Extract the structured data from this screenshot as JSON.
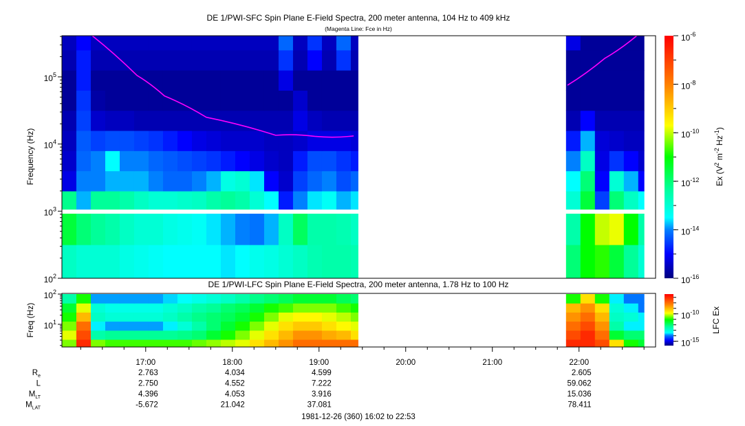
{
  "chart_data": [
    {
      "type": "heatmap",
      "title": "DE 1/PWI-SFC  Spin Plane E-Field Spectra, 200 meter antenna, 104 Hz to 409 kHz",
      "subtitle": "(Magenta Line: Fce in Hz)",
      "ylabel": "Frequency (Hz)",
      "yscale": "log",
      "ylim": [
        100,
        409000
      ],
      "yticks": [
        "10^2",
        "10^3",
        "10^4",
        "10^5"
      ],
      "colorbar": {
        "label": "Ex (V^2 m^-2 Hz^-1)",
        "scale": "log",
        "range": [
          1e-16,
          1e-06
        ],
        "ticks": [
          "10^-6",
          "10^-8",
          "10^-10",
          "10^-12",
          "10^-14",
          "10^-16"
        ]
      },
      "freq_bands_log10_hz": [
        [
          2.0,
          2.5
        ],
        [
          2.5,
          2.97
        ],
        [
          3.0,
          3.3
        ],
        [
          3.3,
          3.6
        ],
        [
          3.6,
          3.9
        ],
        [
          3.9,
          4.2
        ],
        [
          4.2,
          4.5
        ],
        [
          4.5,
          4.8
        ],
        [
          4.8,
          5.1
        ],
        [
          5.1,
          5.4
        ],
        [
          5.4,
          5.61
        ]
      ],
      "segments": [
        {
          "start": "16:02",
          "end": "19:27",
          "bin_minutes": 10,
          "log10_ex": [
            [
              -12.8,
              -13,
              -13,
              -13,
              -13.2,
              -13.3,
              -13.4,
              -13.5,
              -13.5,
              -13.5,
              -13.5,
              -13.6,
              -13.5,
              -13.3,
              -13.2,
              -13,
              -12.8,
              -12.6,
              -12.5,
              -12.5,
              -12.6
            ],
            [
              -11.5,
              -12,
              -12.3,
              -12.5,
              -12.8,
              -13,
              -13,
              -13.2,
              -13.3,
              -13.4,
              -13.6,
              -13.8,
              -14,
              -14.1,
              -13.8,
              -12.8,
              -11.8,
              -12.5,
              -12.5,
              -12.6,
              -12.8
            ],
            [
              -12.2,
              -13.8,
              -12.3,
              -12.3,
              -12.5,
              -12.8,
              -13,
              -13,
              -12.9,
              -12.8,
              -12.5,
              -12.3,
              -12.5,
              -13,
              -13.5,
              -14.8,
              -14,
              -13.6,
              -13.4,
              -13.8,
              -13.6
            ],
            [
              -15.2,
              -14,
              -14,
              -13.8,
              -13.8,
              -13.8,
              -14,
              -14.2,
              -14.2,
              -14,
              -13.8,
              -13.2,
              -13,
              -13.6,
              -15,
              -15.4,
              -14.5,
              -14.2,
              -14,
              -14.4,
              -14.2
            ],
            [
              -15.4,
              -14.2,
              -14,
              -13.5,
              -14,
              -14,
              -14.2,
              -14.3,
              -14.4,
              -14.5,
              -14.6,
              -14.8,
              -15,
              -15.2,
              -15.4,
              -15.5,
              -14.8,
              -14.4,
              -14.4,
              -14.6,
              -14.8
            ],
            [
              -15.5,
              -14.3,
              -14.5,
              -14.4,
              -14.4,
              -14.5,
              -14.6,
              -14.8,
              -15,
              -15.2,
              -15.3,
              -15.4,
              -15.4,
              -15.4,
              -15.5,
              -15.5,
              -15.4,
              -15.2,
              -15.2,
              -15.2,
              -15.3
            ],
            [
              -15.6,
              -14.5,
              -15.4,
              -15.5,
              -15.5,
              -15.6,
              -15.6,
              -15.6,
              -15.6,
              -15.6,
              -15.6,
              -15.6,
              -15.6,
              -15.6,
              -15.6,
              -15.6,
              -15.2,
              -15.5,
              -15.6,
              -15.6,
              -15.6
            ],
            [
              -15.8,
              -14.6,
              -15.7,
              -15.8,
              -15.8,
              -15.8,
              -15.8,
              -15.8,
              -15.8,
              -15.8,
              -15.8,
              -15.8,
              -15.8,
              -15.8,
              -15.8,
              -15.8,
              -15.4,
              -15.8,
              -15.8,
              -15.8,
              -15.8
            ],
            [
              -15.8,
              -14.8,
              -15.8,
              -15.8,
              -15.8,
              -15.8,
              -15.8,
              -15.8,
              -15.8,
              -15.8,
              -15.8,
              -15.8,
              -15.8,
              -15.8,
              -15.8,
              -15.2,
              -15.8,
              -15.8,
              -15.8,
              -15.8,
              -15.8
            ],
            [
              -15.6,
              -14.8,
              -15.6,
              -15.6,
              -15.6,
              -15.6,
              -15.6,
              -15.6,
              -15.6,
              -15.6,
              -15.6,
              -15.6,
              -15.6,
              -15.6,
              -15.6,
              -14.6,
              -15.6,
              -15,
              -15.6,
              -14.6,
              -15.6
            ],
            [
              -15.5,
              -15,
              -15.5,
              -15.5,
              -15.5,
              -15.5,
              -15.5,
              -15.5,
              -15.5,
              -15.5,
              -15.5,
              -15.5,
              -15.5,
              -15.5,
              -15.5,
              -14.2,
              -15.5,
              -14.6,
              -15.5,
              -14.2,
              -15.5
            ]
          ]
        },
        {
          "start": "21:51",
          "end": "22:45",
          "bin_minutes": 10,
          "log10_ex": [
            [
              -12,
              -11,
              -10.8,
              -11.5,
              -12.3,
              -13
            ],
            [
              -12.5,
              -11,
              -10,
              -9.8,
              -11,
              -12.5
            ],
            [
              -13,
              -11.5,
              -14.5,
              -12,
              -12.8,
              -13.5
            ],
            [
              -13.5,
              -12,
              -15,
              -13,
              -13.8,
              -15
            ],
            [
              -14,
              -12.8,
              -15.2,
              -14.6,
              -15,
              -15.4
            ],
            [
              -14.8,
              -13.8,
              -15.3,
              -15.4,
              -15.5,
              -15.5
            ],
            [
              -15.6,
              -15,
              -15.6,
              -15.6,
              -15.6,
              -15.6
            ],
            [
              -15.8,
              -15.8,
              -15.8,
              -15.8,
              -15.8,
              -15.8
            ],
            [
              -15.8,
              -15.8,
              -15.8,
              -15.8,
              -15.8,
              -15.8
            ],
            [
              -15.8,
              -15.8,
              -15.8,
              -15.8,
              -15.8,
              -15.8
            ],
            [
              -15.2,
              -15.8,
              -15.8,
              -15.8,
              -15.8,
              -15.8
            ]
          ]
        }
      ],
      "fce_line": {
        "color": "#ff00ff",
        "segments": [
          [
            [
              "16:23",
              410000
            ],
            [
              "16:54",
              105000
            ],
            [
              "17:13",
              52000
            ],
            [
              "17:42",
              25000
            ],
            [
              "18:30",
              13500
            ],
            [
              "18:57",
              13000
            ],
            [
              "19:24",
              13200
            ]
          ],
          [
            [
              "21:52",
              75000
            ],
            [
              "22:18",
              190000
            ],
            [
              "22:40",
              410000
            ]
          ]
        ]
      }
    },
    {
      "type": "heatmap",
      "title": "DE 1/PWI-LFC  Spin Plane E-Field Spectra, 200 meter antenna, 1.78 Hz to 100 Hz",
      "ylabel": "Freq (Hz)",
      "yscale": "log",
      "ylim": [
        1.78,
        100
      ],
      "yticks": [
        "10^1",
        "10^2"
      ],
      "colorbar": {
        "label": "LFC Ex",
        "scale": "log",
        "range": [
          1.6e-16,
          4e-07
        ],
        "ticks": [
          "10^-10",
          "10^-15"
        ]
      },
      "freq_bands_log10_hz": [
        [
          0.25,
          0.5
        ],
        [
          0.5,
          0.8
        ],
        [
          0.8,
          1.1
        ],
        [
          1.1,
          1.4
        ],
        [
          1.4,
          1.7
        ],
        [
          1.7,
          2.0
        ]
      ],
      "segments": [
        {
          "start": "16:02",
          "end": "19:27",
          "bin_minutes": 10,
          "log10_ex": [
            [
              -10.5,
              -7,
              -10.5,
              -10.8,
              -10.8,
              -10.8,
              -10.8,
              -10.8,
              -10.8,
              -10.6,
              -10.4,
              -10.2,
              -10,
              -9.5,
              -9,
              -8.5,
              -8,
              -8,
              -8,
              -8,
              -8
            ],
            [
              -10,
              -7.5,
              -12.5,
              -12.3,
              -12.3,
              -12.3,
              -12.3,
              -12.3,
              -12.2,
              -12,
              -11.5,
              -11,
              -10.5,
              -10,
              -9.5,
              -9,
              -8.5,
              -8.5,
              -8.8,
              -9,
              -9.5
            ],
            [
              -10.5,
              -8,
              -13.5,
              -13.8,
              -13.8,
              -13.8,
              -13.8,
              -13.5,
              -13,
              -12.5,
              -12,
              -11.5,
              -11,
              -10.5,
              -10,
              -9.5,
              -9.2,
              -9.2,
              -9.5,
              -9.8,
              -10
            ],
            [
              -11,
              -9,
              -12.8,
              -13,
              -13,
              -13,
              -13,
              -12.8,
              -12.5,
              -12.2,
              -12,
              -11.8,
              -11.5,
              -11,
              -10.5,
              -10,
              -9.8,
              -9.8,
              -10,
              -10.2,
              -10.5
            ],
            [
              -11.5,
              -10,
              -13,
              -13.2,
              -13.2,
              -13.2,
              -13.2,
              -13,
              -12.8,
              -12.5,
              -12.3,
              -12,
              -11.8,
              -11.5,
              -11,
              -10.8,
              -10.5,
              -10.5,
              -10.5,
              -10.8,
              -11
            ],
            [
              -12.5,
              -11,
              -13.8,
              -13.8,
              -13.8,
              -13.8,
              -13.8,
              -13.6,
              -13.4,
              -13.2,
              -13,
              -12.8,
              -12.5,
              -12.2,
              -12,
              -11.8,
              -11.5,
              -11.5,
              -11.5,
              -11.8,
              -12
            ]
          ]
        },
        {
          "start": "21:51",
          "end": "22:45",
          "bin_minutes": 10,
          "log10_ex": [
            [
              -7,
              -7,
              -7.5,
              -9.5,
              -11,
              -11.5
            ],
            [
              -7.5,
              -7,
              -8,
              -11.5,
              -12,
              -12
            ],
            [
              -8,
              -7.5,
              -8.5,
              -12.5,
              -13.5,
              -13.5
            ],
            [
              -8.5,
              -8,
              -9,
              -12.8,
              -13,
              -13.5
            ],
            [
              -9,
              -8.5,
              -9.5,
              -13,
              -13.5,
              -14
            ],
            [
              -11,
              -9.5,
              -11,
              -13.5,
              -14,
              -14
            ]
          ]
        }
      ]
    }
  ],
  "time_axis": {
    "range": [
      "16:02",
      "22:53"
    ],
    "major_ticks": [
      "17:00",
      "18:00",
      "19:00",
      "20:00",
      "21:00",
      "22:00"
    ],
    "minor_tick_minutes": 15
  },
  "ephemeris": {
    "rows": [
      {
        "label": "R",
        "sub": "e",
        "values": [
          "2.763",
          "4.034",
          "4.599",
          "",
          "",
          "2.605"
        ]
      },
      {
        "label": "L",
        "sub": "",
        "values": [
          "2.750",
          "4.552",
          "7.222",
          "",
          "",
          "59.062"
        ]
      },
      {
        "label": "M",
        "sub": "LT",
        "values": [
          "4.396",
          "4.053",
          "3.916",
          "",
          "",
          "15.036"
        ]
      },
      {
        "label": "M",
        "sub": "LAT",
        "values": [
          "-5.672",
          "21.042",
          "37.081",
          "",
          "",
          "78.411"
        ]
      }
    ]
  },
  "footer": "1981-12-26 (360) 16:02 to 22:53",
  "colormap": [
    "#00007f",
    "#0000ff",
    "#0080ff",
    "#00ffff",
    "#00ff99",
    "#00ff00",
    "#ffff00",
    "#ff8000",
    "#ff0000"
  ]
}
